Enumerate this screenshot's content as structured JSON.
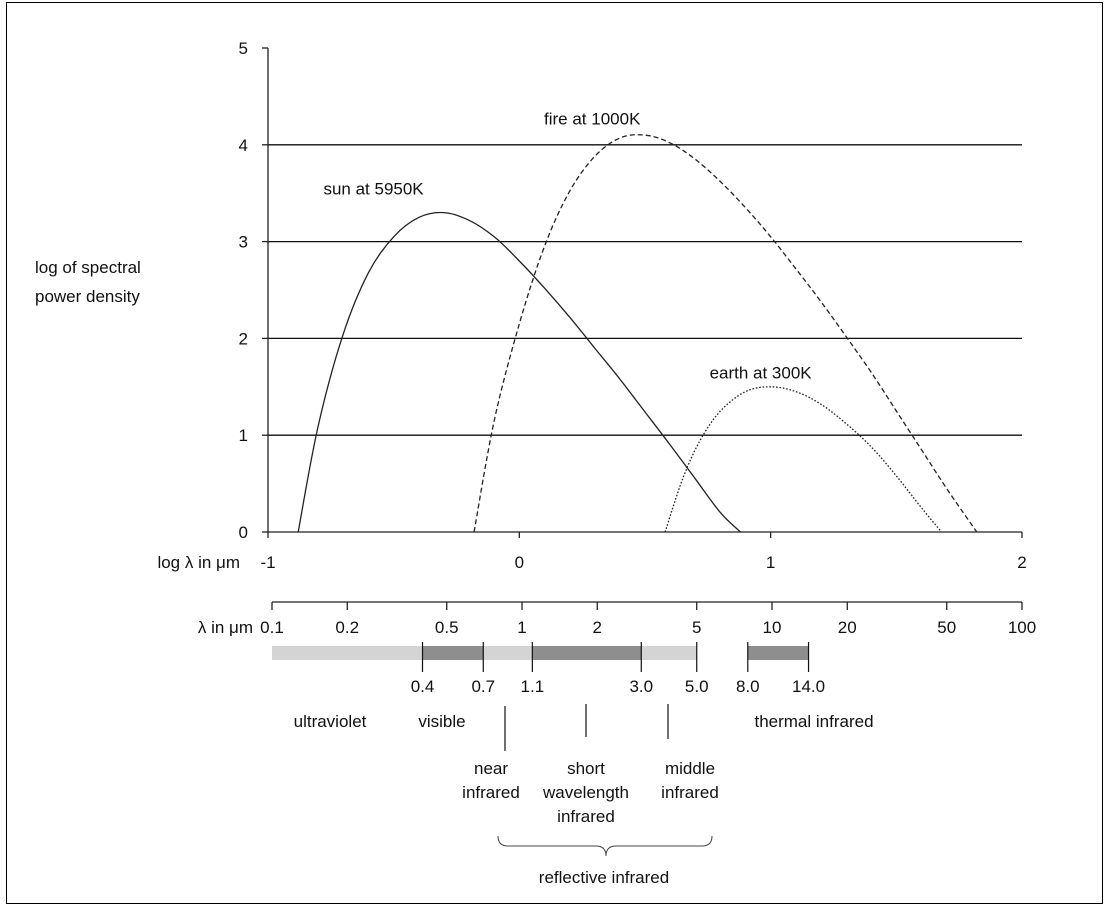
{
  "chart_data": {
    "type": "line",
    "xlabel": "log λ in μm",
    "ylabel": "log of spectral power density",
    "xlim": [
      -1,
      2
    ],
    "ylim": [
      0,
      5
    ],
    "x_ticks": [
      "-1",
      "0",
      "1",
      "2"
    ],
    "y_ticks": [
      "0",
      "1",
      "2",
      "3",
      "4",
      "5"
    ],
    "grid": "horizontal lines at y = 1, 2, 3, 4",
    "series": [
      {
        "name": "sun at 5950K",
        "style": "solid",
        "x": [
          -0.88,
          -0.8,
          -0.7,
          -0.6,
          -0.5,
          -0.4,
          -0.3,
          -0.2,
          -0.1,
          0.0,
          0.1,
          0.2,
          0.3,
          0.4,
          0.5,
          0.6,
          0.7,
          0.8,
          0.88
        ],
        "y": [
          0,
          1.1,
          2.05,
          2.68,
          3.05,
          3.25,
          3.3,
          3.22,
          3.05,
          2.8,
          2.52,
          2.22,
          1.9,
          1.58,
          1.24,
          0.9,
          0.55,
          0.2,
          0
        ]
      },
      {
        "name": "fire at 1000K",
        "style": "dashed",
        "x": [
          -0.18,
          -0.1,
          0.0,
          0.1,
          0.2,
          0.3,
          0.4,
          0.5,
          0.6,
          0.7,
          0.8,
          0.9,
          1.0,
          1.1,
          1.2,
          1.3,
          1.4,
          1.5,
          1.6,
          1.7,
          1.82
        ],
        "y": [
          0,
          1.15,
          2.15,
          2.95,
          3.52,
          3.88,
          4.07,
          4.1,
          4.02,
          3.85,
          3.62,
          3.35,
          3.05,
          2.72,
          2.38,
          2.02,
          1.65,
          1.25,
          0.85,
          0.45,
          0
        ]
      },
      {
        "name": "earth at 300K",
        "style": "dotted",
        "x": [
          0.58,
          0.65,
          0.72,
          0.8,
          0.9,
          1.0,
          1.1,
          1.2,
          1.3,
          1.4,
          1.5,
          1.6,
          1.68
        ],
        "y": [
          0,
          0.55,
          0.95,
          1.25,
          1.45,
          1.5,
          1.45,
          1.32,
          1.12,
          0.88,
          0.58,
          0.25,
          0
        ]
      }
    ],
    "wavelength_scale": {
      "label": "λ in μm",
      "ticks": [
        {
          "v": 0.1,
          "label": "0.1"
        },
        {
          "v": 0.2,
          "label": "0.2"
        },
        {
          "v": 0.5,
          "label": "0.5"
        },
        {
          "v": 1,
          "label": "1"
        },
        {
          "v": 2,
          "label": "2"
        },
        {
          "v": 5,
          "label": "5"
        },
        {
          "v": 10,
          "label": "10"
        },
        {
          "v": 20,
          "label": "20"
        },
        {
          "v": 50,
          "label": "50"
        },
        {
          "v": 100,
          "label": "100"
        }
      ]
    },
    "bands": [
      {
        "from": 0.1,
        "to": 0.4,
        "shade": "light"
      },
      {
        "from": 0.4,
        "to": 0.7,
        "shade": "dark"
      },
      {
        "from": 0.7,
        "to": 1.1,
        "shade": "light"
      },
      {
        "from": 1.1,
        "to": 3.0,
        "shade": "dark"
      },
      {
        "from": 3.0,
        "to": 5.0,
        "shade": "light"
      },
      {
        "from": 8.0,
        "to": 14.0,
        "shade": "dark"
      }
    ],
    "band_boundaries": [
      {
        "v": 0.4,
        "label": "0.4"
      },
      {
        "v": 0.7,
        "label": "0.7"
      },
      {
        "v": 1.1,
        "label": "1.1"
      },
      {
        "v": 3.0,
        "label": "3.0"
      },
      {
        "v": 5.0,
        "label": "5.0"
      },
      {
        "v": 8.0,
        "label": "8.0"
      },
      {
        "v": 14.0,
        "label": "14.0"
      }
    ],
    "regions": {
      "ultraviolet": "ultraviolet",
      "visible": "visible",
      "thermal": "thermal infrared",
      "near": [
        "near",
        "infrared"
      ],
      "short": [
        "short",
        "wavelength",
        "infrared"
      ],
      "middle": [
        "middle",
        "infrared"
      ],
      "reflective": "reflective infrared"
    }
  },
  "colors": {
    "light_band": "#d4d4d4",
    "dark_band": "#8e8e8e",
    "line": "#222222"
  }
}
